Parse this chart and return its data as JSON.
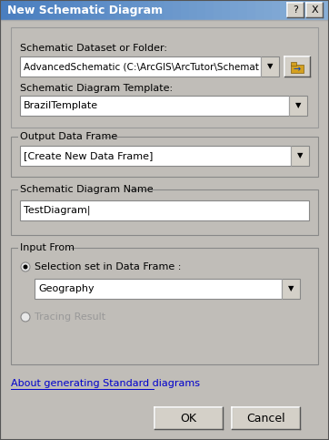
{
  "title": "New Schematic Diagram",
  "bg_color": "#c0bdb8",
  "titlebar_color_left": "#4a7ebf",
  "titlebar_color_right": "#8ab0d8",
  "section1_label": "Schematic Dataset or Folder:",
  "section1_dropdown_text_short": "AdvancedSchematic (C:\\ArcGIS\\ArcTutor\\Schemat",
  "section2_label": "Schematic Diagram Template:",
  "section2_dropdown_text": "BrazilTemplate",
  "section3_label": "Output Data Frame",
  "section3_dropdown_text": "[Create New Data Frame]",
  "section4_label": "Schematic Diagram Name",
  "section4_input_text": "TestDiagram|",
  "section5_label": "Input From",
  "radio1_label": "Selection set in Data Frame :",
  "radio1_dropdown_text": "Geography",
  "radio2_label": "Tracing Result",
  "link_text": "About generating Standard diagrams",
  "ok_button": "OK",
  "cancel_button": "Cancel",
  "help_button": "?",
  "close_button": "X"
}
